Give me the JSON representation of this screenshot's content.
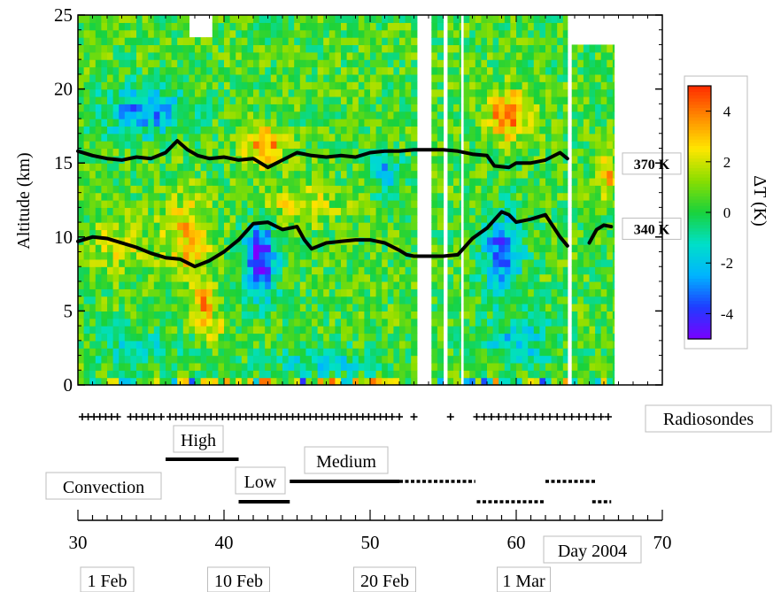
{
  "chart_data": {
    "type": "heatmap",
    "ylabel": "Altitude (km)",
    "colorbar_label": "ΔT (K)",
    "y_range": [
      0,
      25
    ],
    "y_ticks": [
      0,
      5,
      10,
      15,
      20,
      25
    ],
    "colorbar_range": [
      -5,
      5
    ],
    "colorbar_ticks": [
      4,
      2,
      0,
      -2,
      -4
    ],
    "colorbar_tick_labels": [
      "4",
      "2",
      "0",
      "-2",
      "-4"
    ],
    "colormap": [
      "#7a00ff",
      "#1f3cff",
      "#00b4ff",
      "#00e0c8",
      "#19d23c",
      "#8ade00",
      "#ffe600",
      "#ff8c00",
      "#ff2a00"
    ],
    "x_axis": {
      "range": [
        30,
        70
      ],
      "ticks": [
        30,
        40,
        50,
        60,
        70
      ],
      "tick_labels": [
        "30",
        "40",
        "50",
        "60",
        "70"
      ],
      "label": "Day 2004"
    },
    "date_labels": [
      {
        "day": 32,
        "text": "1 Feb"
      },
      {
        "day": 41,
        "text": "10 Feb"
      },
      {
        "day": 51,
        "text": "20 Feb"
      },
      {
        "day": 61,
        "text": "1 Mar"
      }
    ],
    "data_coverage": [
      [
        30,
        53.2
      ],
      [
        54.2,
        55.0
      ],
      [
        55.3,
        56.2
      ],
      [
        56.4,
        63.5
      ],
      [
        63.8,
        66.7
      ]
    ],
    "isentropes": [
      {
        "name": "370 K",
        "points": [
          [
            30,
            15.8
          ],
          [
            31,
            15.5
          ],
          [
            32,
            15.3
          ],
          [
            33,
            15.2
          ],
          [
            34,
            15.4
          ],
          [
            35,
            15.3
          ],
          [
            36,
            15.7
          ],
          [
            36.8,
            16.5
          ],
          [
            37.5,
            15.9
          ],
          [
            38.2,
            15.5
          ],
          [
            39,
            15.3
          ],
          [
            40,
            15.4
          ],
          [
            41,
            15.2
          ],
          [
            42,
            15.3
          ],
          [
            43,
            14.7
          ],
          [
            44,
            15.2
          ],
          [
            45,
            15.7
          ],
          [
            46,
            15.5
          ],
          [
            47,
            15.4
          ],
          [
            48,
            15.5
          ],
          [
            49,
            15.4
          ],
          [
            50,
            15.7
          ],
          [
            51,
            15.8
          ],
          [
            52,
            15.8
          ],
          [
            53,
            15.9
          ],
          [
            54,
            15.9
          ],
          [
            55,
            15.9
          ],
          [
            56,
            15.8
          ],
          [
            57,
            15.6
          ],
          [
            58,
            15.5
          ],
          [
            58.5,
            14.8
          ],
          [
            59.5,
            14.7
          ],
          [
            60,
            15.0
          ],
          [
            61,
            15.0
          ],
          [
            62,
            15.2
          ],
          [
            63,
            15.7
          ],
          [
            63.5,
            15.3
          ],
          [
            64.3,
            15.5
          ],
          [
            65.5,
            14.9
          ],
          [
            66.5,
            14.9
          ]
        ]
      },
      {
        "name": "340 K",
        "points": [
          [
            30,
            9.7
          ],
          [
            31,
            10.0
          ],
          [
            32,
            9.9
          ],
          [
            33,
            9.6
          ],
          [
            34,
            9.3
          ],
          [
            35,
            8.9
          ],
          [
            36,
            8.6
          ],
          [
            37,
            8.5
          ],
          [
            38,
            8.0
          ],
          [
            39,
            8.4
          ],
          [
            40,
            9.0
          ],
          [
            41,
            9.8
          ],
          [
            42,
            10.9
          ],
          [
            43,
            11.0
          ],
          [
            44,
            10.5
          ],
          [
            45,
            10.7
          ],
          [
            45.5,
            9.8
          ],
          [
            46,
            9.2
          ],
          [
            47,
            9.6
          ],
          [
            48,
            9.7
          ],
          [
            49,
            9.8
          ],
          [
            50,
            9.8
          ],
          [
            51,
            9.6
          ],
          [
            52,
            9.1
          ],
          [
            52.5,
            8.8
          ],
          [
            53,
            8.7
          ],
          [
            55,
            8.7
          ],
          [
            56,
            8.8
          ],
          [
            57,
            9.9
          ],
          [
            58,
            10.6
          ],
          [
            59,
            11.7
          ],
          [
            59.5,
            11.5
          ],
          [
            60,
            11.0
          ],
          [
            61,
            11.2
          ],
          [
            62,
            11.5
          ],
          [
            63,
            10.0
          ],
          [
            63.5,
            9.4
          ],
          [
            64.3,
            9.4
          ],
          [
            65,
            9.6
          ],
          [
            65.5,
            10.5
          ],
          [
            66,
            10.8
          ],
          [
            66.5,
            10.7
          ]
        ]
      }
    ],
    "radiosonde_days": [
      30.3,
      30.7,
      31.1,
      31.5,
      31.9,
      32.3,
      32.7,
      33.6,
      34.0,
      34.4,
      34.8,
      35.2,
      35.7,
      36.3,
      36.7,
      37.1,
      37.5,
      37.9,
      38.3,
      38.7,
      39.1,
      39.5,
      39.9,
      40.3,
      40.7,
      41.1,
      41.5,
      41.9,
      42.3,
      42.7,
      43.1,
      43.5,
      43.9,
      44.3,
      44.7,
      45.1,
      45.5,
      45.9,
      46.3,
      46.7,
      47.1,
      47.5,
      47.9,
      48.3,
      48.7,
      49.1,
      49.5,
      49.9,
      50.3,
      50.7,
      51.1,
      51.5,
      52.0,
      53.0,
      55.5,
      57.3,
      57.8,
      58.3,
      58.8,
      59.3,
      59.8,
      60.3,
      60.8,
      61.3,
      61.8,
      62.3,
      62.8,
      63.3,
      63.8,
      64.3,
      64.8,
      65.3,
      65.8,
      66.3
    ],
    "regimes": [
      {
        "name": "High",
        "segments": [
          {
            "from": 36.0,
            "to": 41.0,
            "style": "solid"
          }
        ]
      },
      {
        "name": "Medium",
        "segments": [
          {
            "from": 44.5,
            "to": 52.0,
            "style": "solid"
          },
          {
            "from": 52.0,
            "to": 57.2,
            "style": "dotted"
          },
          {
            "from": 62.0,
            "to": 65.5,
            "style": "dotted"
          }
        ]
      },
      {
        "name": "Low",
        "segments": [
          {
            "from": 41.0,
            "to": 44.5,
            "style": "solid"
          },
          {
            "from": 57.3,
            "to": 62.0,
            "style": "dotted"
          },
          {
            "from": 65.2,
            "to": 66.5,
            "style": "dotted"
          }
        ]
      }
    ],
    "annotations": {
      "radiosondes": "Radiosondes",
      "convection": "Convection"
    }
  }
}
